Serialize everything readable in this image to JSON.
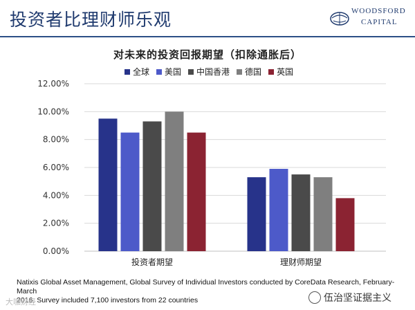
{
  "header": {
    "title": "投资者比理财师乐观",
    "logo_line1": "WOODSFORD",
    "logo_line2": "CAPITAL"
  },
  "chart_data": {
    "type": "bar",
    "title": "对未来的投资回报期望（扣除通胀后）",
    "categories": [
      "投资者期望",
      "理财师期望"
    ],
    "series": [
      {
        "name": "全球",
        "color": "#27338a",
        "values": [
          9.5,
          5.3
        ]
      },
      {
        "name": "美国",
        "color": "#4d5ac9",
        "values": [
          8.5,
          5.9
        ]
      },
      {
        "name": "中国香港",
        "color": "#4a4a4a",
        "values": [
          9.3,
          5.5
        ]
      },
      {
        "name": "德国",
        "color": "#7f7f7f",
        "values": [
          10.0,
          5.3
        ]
      },
      {
        "name": "英国",
        "color": "#8b2332",
        "values": [
          8.5,
          3.8
        ]
      }
    ],
    "ylim": [
      0,
      12
    ],
    "yticks": [
      "0.00%",
      "2.00%",
      "4.00%",
      "6.00%",
      "8.00%",
      "10.00%",
      "12.00%"
    ],
    "ytick_values": [
      0,
      2,
      4,
      6,
      8,
      10,
      12
    ],
    "legend": "top",
    "grid": true
  },
  "footnote": {
    "line1": "Natixis Global Asset Management, Global Survey of Individual Investors conducted by CoreData Research, February-March",
    "line2": "2016. Survey included 7,100 investors from 22 countries"
  },
  "watermarks": {
    "left": "大咖财经",
    "right": "伍治坚证据主义"
  }
}
